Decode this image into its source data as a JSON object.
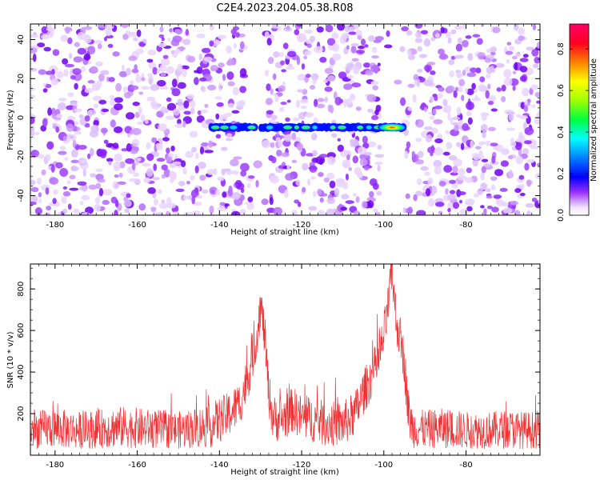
{
  "title": "C2E4.2023.204.05.38.R08",
  "colorbar": {
    "label": "Normalized spectral amplitude",
    "ticks": [
      "0.0",
      "0.2",
      "0.4",
      "0.6",
      "0.8"
    ],
    "tick_values": [
      0.0,
      0.2,
      0.4,
      0.6,
      0.8
    ],
    "range": [
      0,
      0.92
    ],
    "colormap": "gist_rainbow_r"
  },
  "chart_data": [
    {
      "type": "heatmap",
      "name_in_image": "spectrogram",
      "xlabel": "Height of straight line (km)",
      "ylabel": "Frequency (Hz)",
      "xlim": [
        -186,
        -62
      ],
      "ylim": [
        -50,
        48
      ],
      "xticks": [
        -180,
        -160,
        -140,
        -120,
        -100,
        -80
      ],
      "xtick_labels": [
        "-180",
        "-160",
        "-140",
        "-120",
        "-100",
        "-80"
      ],
      "yticks": [
        -40,
        -20,
        0,
        20,
        40
      ],
      "ytick_labels": [
        "-40",
        "-20",
        "0",
        "20",
        "40"
      ],
      "signal_band": {
        "x_range": [
          -142,
          -95
        ],
        "frequency_hz": -5,
        "peak_x_km": -98,
        "peak_amplitude": 0.9
      },
      "noise_gaps_km": [
        [
          -134,
          -129
        ],
        [
          -101,
          -95
        ]
      ],
      "background_amplitude_range": [
        0.0,
        0.25
      ]
    },
    {
      "type": "line",
      "name_in_image": "snr",
      "xlabel": "Height of straight line (km)",
      "ylabel": "SNR (10 * v/v)",
      "xlim": [
        -186,
        -62
      ],
      "ylim": [
        0,
        920
      ],
      "xticks": [
        -180,
        -160,
        -140,
        -120,
        -100,
        -80
      ],
      "xtick_labels": [
        "-180",
        "-160",
        "-140",
        "-120",
        "-100",
        "-80"
      ],
      "yticks": [
        200,
        400,
        600,
        800
      ],
      "ytick_labels": [
        "200",
        "400",
        "600",
        "800"
      ],
      "line_color": "#ef3333",
      "x": [
        -186,
        -180,
        -175,
        -170,
        -165,
        -160,
        -155,
        -150,
        -145,
        -142,
        -140,
        -138,
        -135,
        -133,
        -131,
        -130,
        -129,
        -128,
        -127,
        -125,
        -122,
        -120,
        -117,
        -114,
        -110,
        -107,
        -105,
        -103,
        -101,
        -100,
        -99,
        -98,
        -97.5,
        -97,
        -96,
        -95,
        -94,
        -93,
        -90,
        -85,
        -80,
        -75,
        -70,
        -65,
        -62
      ],
      "values": [
        120,
        130,
        120,
        125,
        135,
        130,
        125,
        120,
        135,
        140,
        170,
        190,
        250,
        380,
        560,
        720,
        580,
        300,
        180,
        170,
        220,
        180,
        170,
        150,
        150,
        200,
        300,
        380,
        470,
        580,
        700,
        900,
        760,
        650,
        560,
        450,
        200,
        130,
        125,
        130,
        120,
        120,
        125,
        120,
        125
      ]
    }
  ]
}
